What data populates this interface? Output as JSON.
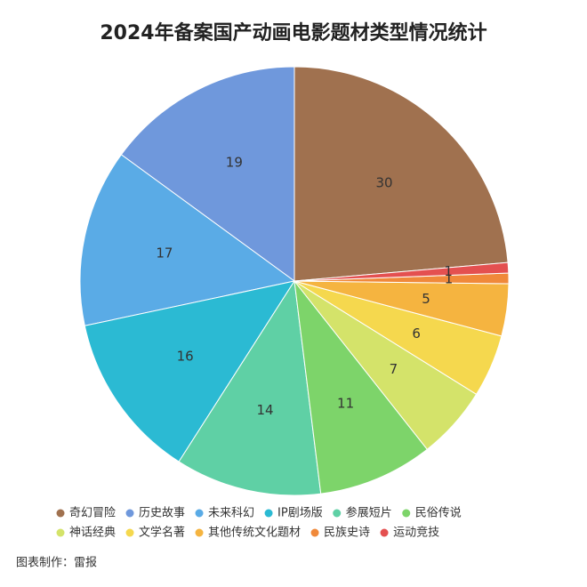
{
  "chart_data": {
    "type": "pie",
    "title": "2024年备案国产动画电影题材类型情况统计",
    "categories": [
      "奇幻冒险",
      "历史故事",
      "未来科幻",
      "IP剧场版",
      "参展短片",
      "民俗传说",
      "神话经典",
      "文学名著",
      "其他传统文化题材",
      "民族史诗",
      "运动竞技"
    ],
    "values": [
      30,
      19,
      17,
      16,
      14,
      11,
      7,
      6,
      5,
      1,
      1
    ],
    "colors": [
      "#a0714f",
      "#6f98dc",
      "#5aabe6",
      "#2bbad3",
      "#5fd0a5",
      "#7dd46a",
      "#d4e36a",
      "#f5d84e",
      "#f5b440",
      "#f0893a",
      "#e45050"
    ],
    "source": "图表制作：雷报"
  }
}
